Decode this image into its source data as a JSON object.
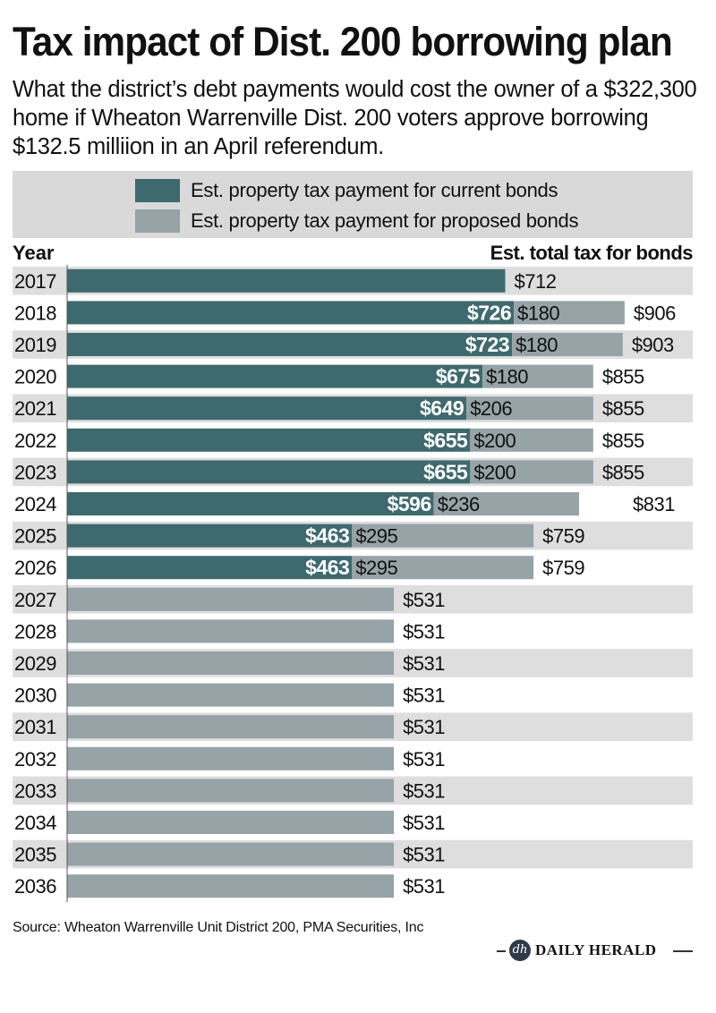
{
  "header": {
    "title": "Tax impact of Dist. 200 borrowing plan",
    "subtitle": "What the district’s debt payments would cost the owner of a $322,300 home if Wheaton Warrenville Dist. 200 voters approve borrowing $132.5 milliion in an April referendum."
  },
  "legend": {
    "current": "Est. property tax payment for current bonds",
    "proposed": "Est. property tax payment for proposed bonds"
  },
  "colors": {
    "current": "#3e6a6f",
    "proposed": "#96a3a7",
    "stripe": "#dedede"
  },
  "chart_data": {
    "type": "bar",
    "orientation": "horizontal",
    "stacked": true,
    "column_headers": {
      "year": "Year",
      "total": "Est. total tax for bonds"
    },
    "categories": [
      "2017",
      "2018",
      "2019",
      "2020",
      "2021",
      "2022",
      "2023",
      "2024",
      "2025",
      "2026",
      "2027",
      "2028",
      "2029",
      "2030",
      "2031",
      "2032",
      "2033",
      "2034",
      "2035",
      "2036"
    ],
    "series": [
      {
        "name": "Est. property tax payment for current bonds",
        "values": [
          712,
          726,
          723,
          675,
          649,
          655,
          655,
          596,
          463,
          463,
          0,
          0,
          0,
          0,
          0,
          0,
          0,
          0,
          0,
          0
        ]
      },
      {
        "name": "Est. property tax payment for proposed bonds",
        "values": [
          0,
          180,
          180,
          180,
          206,
          200,
          200,
          236,
          295,
          295,
          531,
          531,
          531,
          531,
          531,
          531,
          531,
          531,
          531,
          531
        ]
      }
    ],
    "totals": [
      712,
      906,
      903,
      855,
      855,
      855,
      855,
      831,
      759,
      759,
      531,
      531,
      531,
      531,
      531,
      531,
      531,
      531,
      531,
      531
    ],
    "xlim": [
      0,
      1000
    ]
  },
  "footer": {
    "source": "Source: Wheaton Warrenville Unit District 200, PMA Securities, Inc",
    "brand_logo": "dh",
    "brand": "DAILY HERALD"
  }
}
